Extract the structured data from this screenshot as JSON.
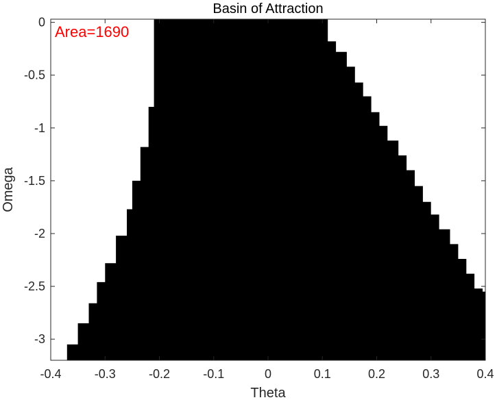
{
  "chart_data": {
    "type": "heatmap",
    "title": "Basin of Attraction",
    "xlabel": "Theta",
    "ylabel": "Omega",
    "xlim": [
      -0.4,
      0.4
    ],
    "ylim": [
      -3.2,
      0.03
    ],
    "xticks": [
      -0.4,
      -0.3,
      -0.2,
      -0.1,
      0,
      0.1,
      0.2,
      0.3,
      0.4
    ],
    "xtick_labels": [
      "-0.4",
      "-0.3",
      "-0.2",
      "-0.1",
      "0",
      "0.1",
      "0.2",
      "0.3",
      "0.4"
    ],
    "yticks": [
      0,
      -0.5,
      -1,
      -1.5,
      -2,
      -2.5,
      -3
    ],
    "ytick_labels": [
      "0",
      "-0.5",
      "-1",
      "-1.5",
      "-2",
      "-2.5",
      "-3"
    ],
    "annotation": "Area=1690",
    "annotation_color": "#ff0000",
    "fill_color": "#000000",
    "background_color": "#ffffff",
    "region_left_boundary": [
      {
        "omega": 0.03,
        "theta": -0.21
      },
      {
        "omega": -0.8,
        "theta": -0.21
      },
      {
        "omega": -0.8,
        "theta": -0.22
      },
      {
        "omega": -1.18,
        "theta": -0.22
      },
      {
        "omega": -1.18,
        "theta": -0.235
      },
      {
        "omega": -1.5,
        "theta": -0.235
      },
      {
        "omega": -1.5,
        "theta": -0.25
      },
      {
        "omega": -1.77,
        "theta": -0.25
      },
      {
        "omega": -1.77,
        "theta": -0.26
      },
      {
        "omega": -2.02,
        "theta": -0.26
      },
      {
        "omega": -2.02,
        "theta": -0.28
      },
      {
        "omega": -2.28,
        "theta": -0.28
      },
      {
        "omega": -2.28,
        "theta": -0.3
      },
      {
        "omega": -2.46,
        "theta": -0.3
      },
      {
        "omega": -2.46,
        "theta": -0.315
      },
      {
        "omega": -2.66,
        "theta": -0.315
      },
      {
        "omega": -2.66,
        "theta": -0.33
      },
      {
        "omega": -2.85,
        "theta": -0.33
      },
      {
        "omega": -2.85,
        "theta": -0.35
      },
      {
        "omega": -3.05,
        "theta": -0.35
      },
      {
        "omega": -3.05,
        "theta": -0.37
      },
      {
        "omega": -3.2,
        "theta": -0.37
      }
    ],
    "region_right_boundary": [
      {
        "omega": 0.03,
        "theta": 0.11
      },
      {
        "omega": -0.18,
        "theta": 0.11
      },
      {
        "omega": -0.18,
        "theta": 0.125
      },
      {
        "omega": -0.28,
        "theta": 0.125
      },
      {
        "omega": -0.28,
        "theta": 0.145
      },
      {
        "omega": -0.42,
        "theta": 0.145
      },
      {
        "omega": -0.42,
        "theta": 0.16
      },
      {
        "omega": -0.57,
        "theta": 0.16
      },
      {
        "omega": -0.57,
        "theta": 0.175
      },
      {
        "omega": -0.7,
        "theta": 0.175
      },
      {
        "omega": -0.7,
        "theta": 0.19
      },
      {
        "omega": -0.85,
        "theta": 0.19
      },
      {
        "omega": -0.85,
        "theta": 0.205
      },
      {
        "omega": -0.98,
        "theta": 0.205
      },
      {
        "omega": -0.98,
        "theta": 0.22
      },
      {
        "omega": -1.12,
        "theta": 0.22
      },
      {
        "omega": -1.12,
        "theta": 0.24
      },
      {
        "omega": -1.26,
        "theta": 0.24
      },
      {
        "omega": -1.26,
        "theta": 0.255
      },
      {
        "omega": -1.4,
        "theta": 0.255
      },
      {
        "omega": -1.4,
        "theta": 0.27
      },
      {
        "omega": -1.55,
        "theta": 0.27
      },
      {
        "omega": -1.55,
        "theta": 0.285
      },
      {
        "omega": -1.7,
        "theta": 0.285
      },
      {
        "omega": -1.7,
        "theta": 0.3
      },
      {
        "omega": -1.82,
        "theta": 0.3
      },
      {
        "omega": -1.82,
        "theta": 0.315
      },
      {
        "omega": -1.96,
        "theta": 0.315
      },
      {
        "omega": -1.96,
        "theta": 0.335
      },
      {
        "omega": -2.1,
        "theta": 0.335
      },
      {
        "omega": -2.1,
        "theta": 0.35
      },
      {
        "omega": -2.24,
        "theta": 0.35
      },
      {
        "omega": -2.24,
        "theta": 0.365
      },
      {
        "omega": -2.38,
        "theta": 0.365
      },
      {
        "omega": -2.38,
        "theta": 0.38
      },
      {
        "omega": -2.52,
        "theta": 0.38
      },
      {
        "omega": -2.52,
        "theta": 0.395
      },
      {
        "omega": -2.55,
        "theta": 0.395
      },
      {
        "omega": -2.55,
        "theta": 0.4
      },
      {
        "omega": -3.2,
        "theta": 0.4
      }
    ]
  }
}
